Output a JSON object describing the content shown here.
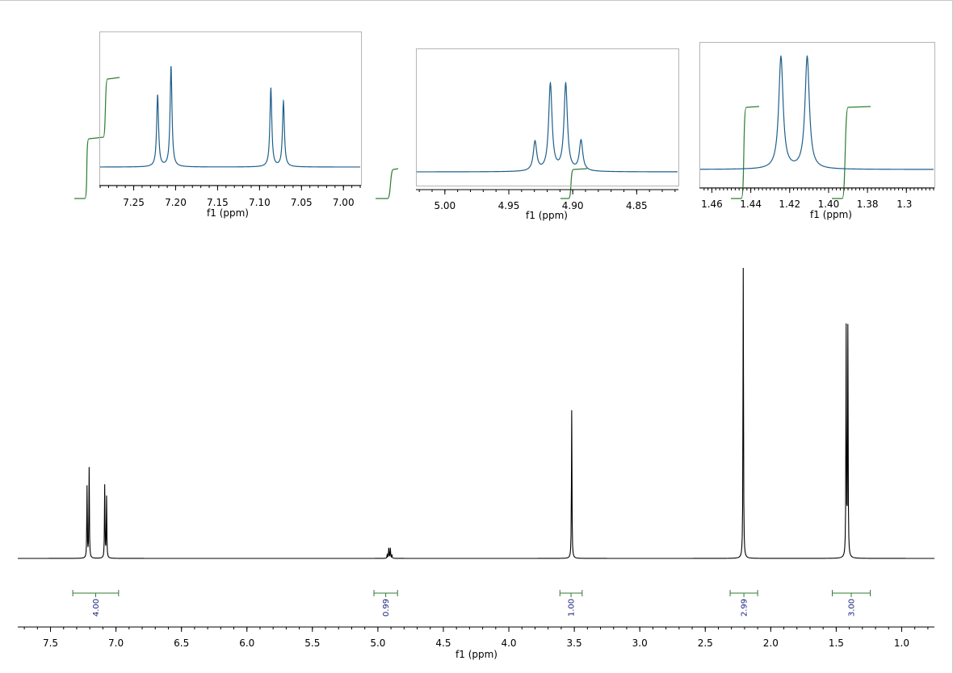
{
  "colors": {
    "main_trace": "#000000",
    "inset_trace": "#1f5f8b",
    "integral": "#2e7d32",
    "integral_label": "#1a237e",
    "inset_border": "#b5b5b5"
  },
  "chart_data": [
    {
      "type": "line",
      "role": "main-spectrum",
      "xlabel": "f1 (ppm)",
      "xlim": [
        7.75,
        0.75
      ],
      "x_reversed": true,
      "x_ticks": [
        "7.5",
        "7.0",
        "6.5",
        "6.0",
        "5.5",
        "5.0",
        "4.5",
        "4.0",
        "3.5",
        "3.0",
        "2.5",
        "2.0",
        "1.5",
        "1.0"
      ],
      "peaks": [
        {
          "ppm": 7.221,
          "height": 0.246
        },
        {
          "ppm": 7.205,
          "height": 0.31
        },
        {
          "ppm": 7.086,
          "height": 0.25
        },
        {
          "ppm": 7.072,
          "height": 0.21
        },
        {
          "ppm": 4.929,
          "height": 0.012
        },
        {
          "ppm": 4.917,
          "height": 0.035
        },
        {
          "ppm": 4.905,
          "height": 0.035
        },
        {
          "ppm": 4.893,
          "height": 0.012
        },
        {
          "ppm": 3.52,
          "height": 0.51
        },
        {
          "ppm": 2.21,
          "height": 1.0
        },
        {
          "ppm": 1.424,
          "height": 0.787
        },
        {
          "ppm": 1.411,
          "height": 0.785
        }
      ],
      "integrals": [
        {
          "from": 7.33,
          "to": 6.98,
          "label": "4.00"
        },
        {
          "from": 5.03,
          "to": 4.85,
          "label": "0.99"
        },
        {
          "from": 3.61,
          "to": 3.44,
          "label": "1.00"
        },
        {
          "from": 2.31,
          "to": 2.1,
          "label": "2.99"
        },
        {
          "from": 1.53,
          "to": 1.24,
          "label": "3.00"
        }
      ]
    },
    {
      "type": "line",
      "role": "inset-1",
      "xlabel": "f1 (ppm)",
      "xlim": [
        7.29,
        6.98
      ],
      "x_ticks": [
        "7.25",
        "7.20",
        "7.15",
        "7.10",
        "7.05",
        "7.00"
      ],
      "peaks": [
        {
          "ppm": 7.2215,
          "height": 0.6
        },
        {
          "ppm": 7.2055,
          "height": 0.84
        },
        {
          "ppm": 7.0865,
          "height": 0.66
        },
        {
          "ppm": 7.0715,
          "height": 0.55
        }
      ]
    },
    {
      "type": "line",
      "role": "inset-2",
      "xlabel": "f1 (ppm)",
      "xlim": [
        5.022,
        4.818
      ],
      "x_ticks": [
        "5.00",
        "4.95",
        "4.90",
        "4.85"
      ],
      "peaks": [
        {
          "ppm": 4.9295,
          "height": 0.28
        },
        {
          "ppm": 4.9175,
          "height": 0.83
        },
        {
          "ppm": 4.9055,
          "height": 0.83
        },
        {
          "ppm": 4.8935,
          "height": 0.29
        }
      ]
    },
    {
      "type": "line",
      "role": "inset-3",
      "xlabel": "f1 (ppm)",
      "xlim": [
        1.466,
        1.346
      ],
      "x_ticks": [
        "1.46",
        "1.44",
        "1.42",
        "1.40",
        "1.38",
        "1.3"
      ],
      "peaks": [
        {
          "ppm": 1.4245,
          "height": 0.87
        },
        {
          "ppm": 1.411,
          "height": 0.87
        }
      ]
    }
  ]
}
